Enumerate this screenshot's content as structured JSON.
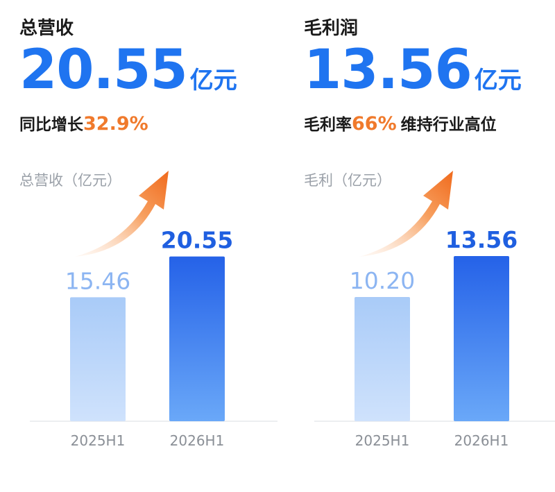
{
  "left": {
    "title": "总营收",
    "value": "20.55",
    "unit": "亿元",
    "sub_prefix": "同比增长",
    "sub_highlight": "32.9%",
    "sub_suffix": ""
  },
  "right": {
    "title": "毛利润",
    "value": "13.56",
    "unit": "亿元",
    "sub_prefix": "毛利率",
    "sub_highlight": "66%",
    "sub_suffix": "维持行业高位"
  },
  "colors": {
    "accent_blue": "#1f74f0",
    "highlight_orange": "#f07a2c",
    "bar_prev": "#a9cbf8",
    "bar_curr": "#2a68ea"
  },
  "chart_data": [
    {
      "type": "bar",
      "title": "总营收（亿元）",
      "categories": [
        "2025H1",
        "2026H1"
      ],
      "values": [
        15.46,
        20.55
      ],
      "value_labels": [
        "15.46",
        "20.55"
      ],
      "ylim": [
        0,
        30
      ]
    },
    {
      "type": "bar",
      "title": "毛利（亿元）",
      "categories": [
        "2025H1",
        "2026H1"
      ],
      "values": [
        10.2,
        13.56
      ],
      "value_labels": [
        "10.20",
        "13.56"
      ],
      "ylim": [
        0,
        20
      ]
    }
  ]
}
